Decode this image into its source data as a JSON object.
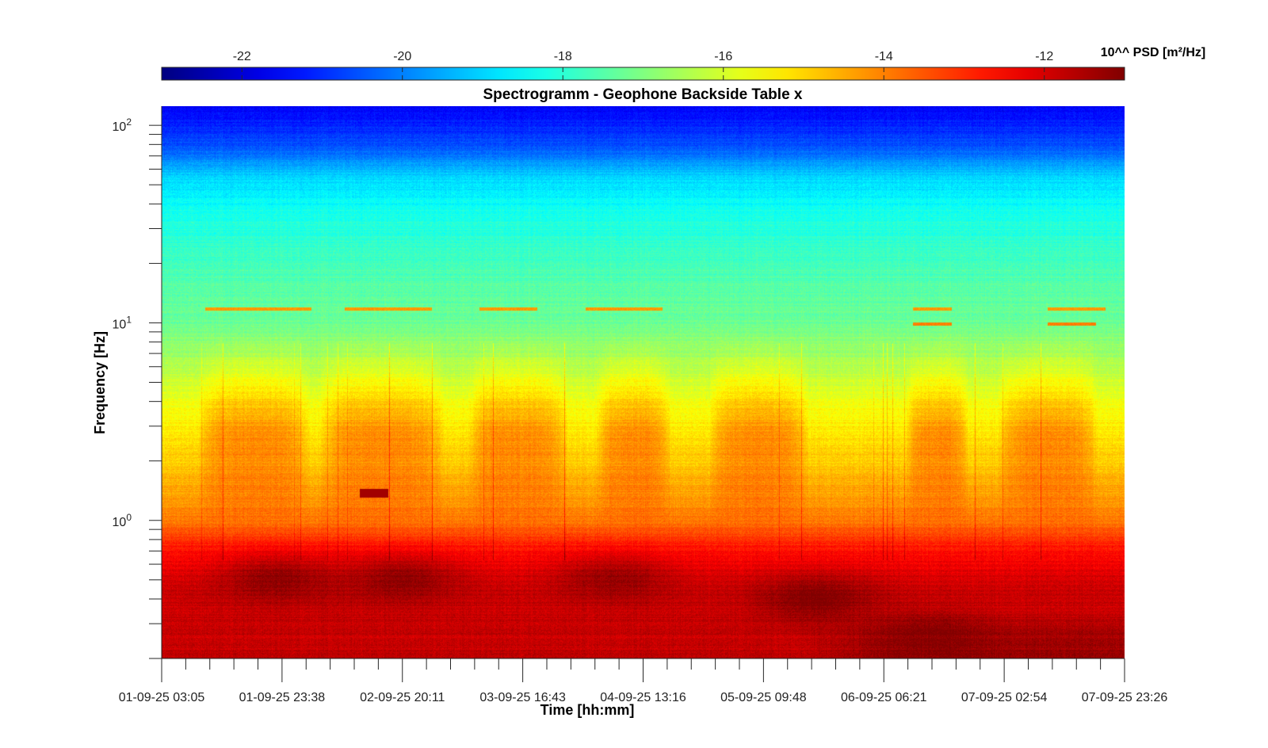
{
  "chart_data": {
    "type": "heatmap",
    "title": "Spectrogramm - Geophone Backside Table x",
    "xlabel": "Time [hh:mm]",
    "ylabel": "Frequency [Hz]",
    "x_ticks": [
      "01-09-25 03:05",
      "01-09-25 23:38",
      "02-09-25 20:11",
      "03-09-25 16:43",
      "04-09-25 13:16",
      "05-09-25 09:48",
      "06-09-25 06:21",
      "07-09-25 02:54",
      "07-09-25 23:26"
    ],
    "y_scale": "log",
    "ylim": [
      0.2,
      125
    ],
    "y_ticks": [
      {
        "value": 100,
        "base": "10",
        "exp": "2"
      },
      {
        "value": 10,
        "base": "10",
        "exp": "1"
      },
      {
        "value": 1,
        "base": "10",
        "exp": "0"
      }
    ],
    "colorbar": {
      "label": "10^^ PSD [m²/Hz]",
      "range": [
        -23,
        -11
      ],
      "ticks": [
        "-22",
        "-20",
        "-18",
        "-16",
        "-14",
        "-12"
      ],
      "tick_values": [
        -22,
        -20,
        -18,
        -16,
        -14,
        -12
      ],
      "colormap": "jet",
      "location": "top"
    },
    "grid": false,
    "features": {
      "background_profile": [
        {
          "freq": 0.2,
          "value": -11.8
        },
        {
          "freq": 0.45,
          "value": -11.9
        },
        {
          "freq": 0.7,
          "value": -12.6
        },
        {
          "freq": 1.0,
          "value": -13.9
        },
        {
          "freq": 2.0,
          "value": -14.9
        },
        {
          "freq": 4.0,
          "value": -15.6
        },
        {
          "freq": 6.0,
          "value": -16.4
        },
        {
          "freq": 10.0,
          "value": -17.2
        },
        {
          "freq": 20.0,
          "value": -17.7
        },
        {
          "freq": 35.0,
          "value": -18.2
        },
        {
          "freq": 55.0,
          "value": -19.0
        },
        {
          "freq": 80.0,
          "value": -20.6
        },
        {
          "freq": 125.0,
          "value": -21.6
        }
      ],
      "daytime_activity_intervals": [
        [
          0.05,
          0.14
        ],
        [
          0.18,
          0.28
        ],
        [
          0.33,
          0.41
        ],
        [
          0.46,
          0.52
        ],
        [
          0.58,
          0.66
        ],
        [
          0.78,
          0.83
        ],
        [
          0.88,
          0.96
        ]
      ],
      "tonal_lines_12Hz": [
        [
          0.045,
          0.155
        ],
        [
          0.19,
          0.28
        ],
        [
          0.33,
          0.39
        ],
        [
          0.44,
          0.52
        ],
        [
          0.78,
          0.82
        ],
        [
          0.92,
          0.98
        ]
      ],
      "tonal_lines_10Hz": [
        [
          0.78,
          0.82
        ],
        [
          0.92,
          0.97
        ]
      ],
      "dark_low_freq_blobs": [
        {
          "t": 0.12,
          "freq": 0.5,
          "value": -11.2
        },
        {
          "t": 0.25,
          "freq": 0.5,
          "value": -11.2
        },
        {
          "t": 0.47,
          "freq": 0.5,
          "value": -11.3
        },
        {
          "t": 0.68,
          "freq": 0.4,
          "value": -11.0
        },
        {
          "t": 0.8,
          "freq": 0.26,
          "value": -11.1
        }
      ],
      "transient_event": {
        "t_range": [
          0.205,
          0.235
        ],
        "freq": 1.38,
        "value": -11.4
      }
    }
  }
}
